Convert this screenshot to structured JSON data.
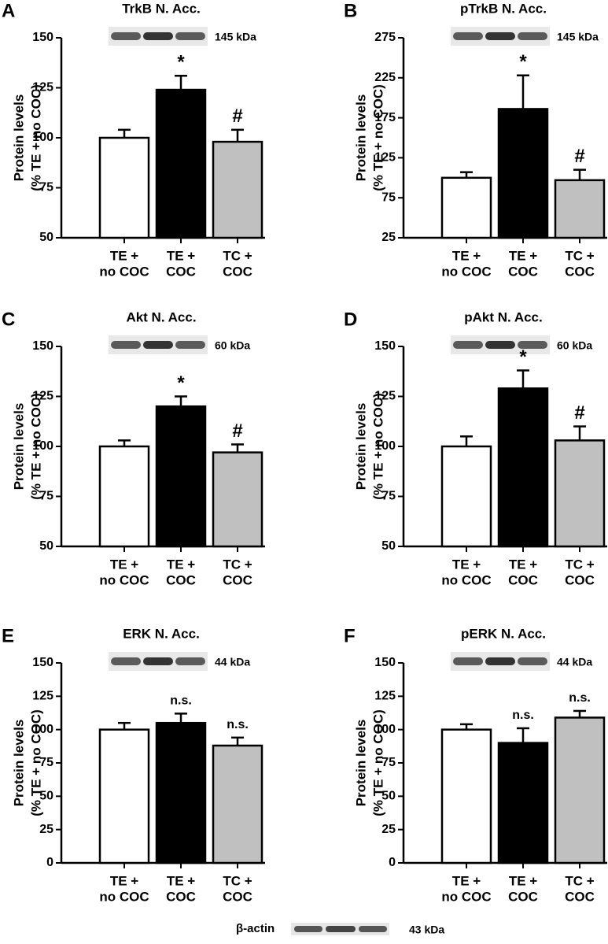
{
  "chart_data": [
    {
      "type": "bar",
      "panel": "A",
      "title": "TrkB N. Acc.",
      "ylabel": [
        "Protein levels",
        "(% TE + no COC)"
      ],
      "categories": [
        [
          "TE +",
          "no COC"
        ],
        [
          "TE +",
          "COC"
        ],
        [
          "TC +",
          "COC"
        ]
      ],
      "values": [
        100,
        124,
        98
      ],
      "errors": [
        4,
        7,
        6
      ],
      "annotations": [
        null,
        "*",
        "#"
      ],
      "colors": [
        "#ffffff",
        "#000000",
        "#c0c0c0"
      ],
      "ylim": [
        50,
        150
      ],
      "yticks": [
        50,
        75,
        100,
        125,
        150
      ],
      "blot_label": "145 kDa"
    },
    {
      "type": "bar",
      "panel": "B",
      "title": "pTrkB N. Acc.",
      "ylabel": [
        "Protein levels",
        "(% TE + no COC)"
      ],
      "categories": [
        [
          "TE +",
          "no COC"
        ],
        [
          "TE +",
          "COC"
        ],
        [
          "TC +",
          "COC"
        ]
      ],
      "values": [
        100,
        186,
        97
      ],
      "errors": [
        7,
        42,
        13
      ],
      "annotations": [
        null,
        "*",
        "#"
      ],
      "colors": [
        "#ffffff",
        "#000000",
        "#c0c0c0"
      ],
      "ylim": [
        25,
        275
      ],
      "yticks": [
        25,
        75,
        125,
        175,
        225,
        275
      ],
      "blot_label": "145 kDa"
    },
    {
      "type": "bar",
      "panel": "C",
      "title": "Akt N. Acc.",
      "ylabel": [
        "Protein levels",
        "(% TE + no COC)"
      ],
      "categories": [
        [
          "TE +",
          "no COC"
        ],
        [
          "TE +",
          "COC"
        ],
        [
          "TC +",
          "COC"
        ]
      ],
      "values": [
        100,
        120,
        97
      ],
      "errors": [
        3,
        5,
        4
      ],
      "annotations": [
        null,
        "*",
        "#"
      ],
      "colors": [
        "#ffffff",
        "#000000",
        "#c0c0c0"
      ],
      "ylim": [
        50,
        150
      ],
      "yticks": [
        50,
        75,
        100,
        125,
        150
      ],
      "blot_label": "60 kDa"
    },
    {
      "type": "bar",
      "panel": "D",
      "title": "pAkt N. Acc.",
      "ylabel": [
        "Protein levels",
        "(% TE + no COC)"
      ],
      "categories": [
        [
          "TE +",
          "no COC"
        ],
        [
          "TE +",
          "COC"
        ],
        [
          "TC +",
          "COC"
        ]
      ],
      "values": [
        100,
        129,
        103
      ],
      "errors": [
        5,
        9,
        7
      ],
      "annotations": [
        null,
        "*",
        "#"
      ],
      "colors": [
        "#ffffff",
        "#000000",
        "#c0c0c0"
      ],
      "ylim": [
        50,
        150
      ],
      "yticks": [
        50,
        75,
        100,
        125,
        150
      ],
      "blot_label": "60 kDa"
    },
    {
      "type": "bar",
      "panel": "E",
      "title": "ERK N. Acc.",
      "ylabel": [
        "Protein levels",
        "(% TE + no COC)"
      ],
      "categories": [
        [
          "TE +",
          "no COC"
        ],
        [
          "TE +",
          "COC"
        ],
        [
          "TC +",
          "COC"
        ]
      ],
      "values": [
        100,
        105,
        88
      ],
      "errors": [
        5,
        7,
        6
      ],
      "annotations": [
        null,
        "n.s.",
        "n.s."
      ],
      "colors": [
        "#ffffff",
        "#000000",
        "#c0c0c0"
      ],
      "ylim": [
        0,
        150
      ],
      "yticks": [
        0,
        25,
        50,
        75,
        100,
        125,
        150
      ],
      "blot_label": "44 kDa"
    },
    {
      "type": "bar",
      "panel": "F",
      "title": "pERK N. Acc.",
      "ylabel": [
        "Protein levels",
        "(% TE + no COC)"
      ],
      "categories": [
        [
          "TE +",
          "no COC"
        ],
        [
          "TE +",
          "COC"
        ],
        [
          "TC +",
          "COC"
        ]
      ],
      "values": [
        100,
        90,
        109
      ],
      "errors": [
        4,
        11,
        5
      ],
      "annotations": [
        null,
        "n.s.",
        "n.s."
      ],
      "colors": [
        "#ffffff",
        "#000000",
        "#c0c0c0"
      ],
      "ylim": [
        0,
        150
      ],
      "yticks": [
        0,
        25,
        50,
        75,
        100,
        125,
        150
      ],
      "blot_label": "44 kDa"
    }
  ],
  "footer": {
    "label": "β-actin",
    "blot_label": "43 kDa"
  }
}
